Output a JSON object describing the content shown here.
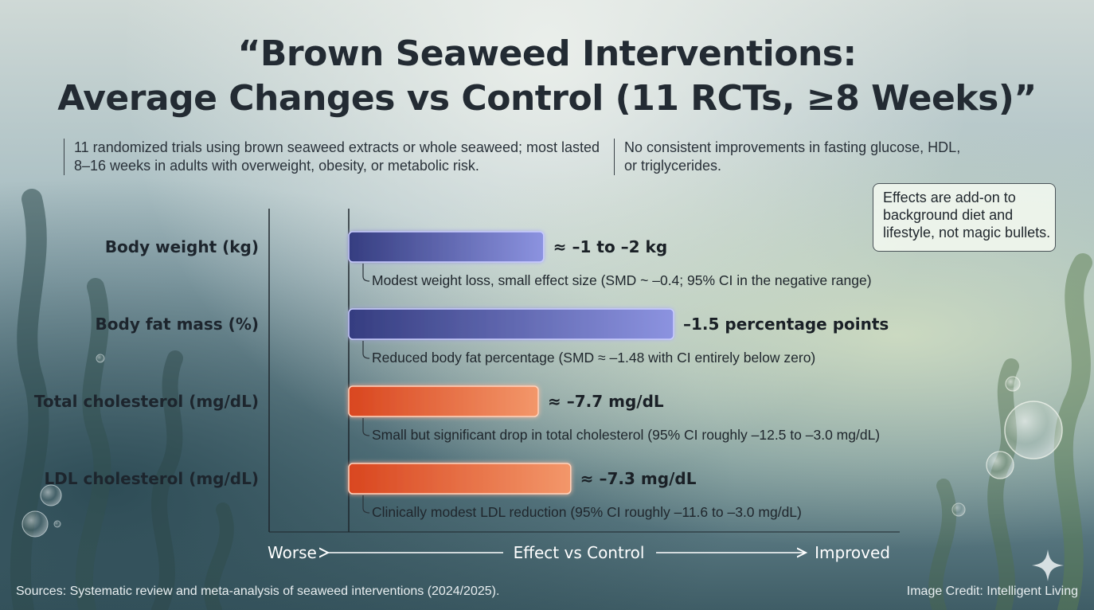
{
  "title": {
    "line1": "“Brown Seaweed Interventions:",
    "line2": "Average Changes vs Control (11 RCTs, ≥8 Weeks)”"
  },
  "description_left": "11 randomized trials using brown seaweed extracts or whole seaweed; most lasted 8–16 weeks in adults with overweight, obesity, or metabolic risk.",
  "description_right": "No consistent improvements in fasting glucose, HDL, or triglycerides.",
  "note_box": "Effects are add-on to background diet and lifestyle, not magic bullets.",
  "colors": {
    "weight_bar": "#5a63b8",
    "cholesterol_bar": "#e2663a",
    "axis": "#ffffff"
  },
  "chart_data": {
    "type": "bar",
    "orientation": "horizontal",
    "rows": [
      {
        "label": "Body weight (kg)",
        "value_label": "≈ –1 to –2 kg",
        "note": "Modest weight loss, small effect size (SMD ~ –0.4; 95% CI in the negative range)",
        "magnitude": 0.36,
        "color": "blue"
      },
      {
        "label": "Body fat mass (%)",
        "value_label": "–1.5 percentage points",
        "note": "Reduced body fat percentage (SMD ≈ –1.48 with CI entirely below zero)",
        "magnitude": 0.6,
        "color": "blue"
      },
      {
        "label": "Total cholesterol (mg/dL)",
        "value_label": "≈ –7.7 mg/dL",
        "note": "Small but significant drop in total cholesterol (95% CI roughly –12.5 to –3.0 mg/dL)",
        "magnitude": 0.35,
        "color": "orange"
      },
      {
        "label": "LDL cholesterol (mg/dL)",
        "value_label": "≈ –7.3 mg/dL",
        "note": "Clinically modest LDL reduction (95% CI roughly –11.6 to –3.0 mg/dL)",
        "magnitude": 0.41,
        "color": "orange"
      }
    ],
    "axis": {
      "left_label": "Worse",
      "center_label": "Effect vs Control",
      "right_label": "Improved"
    }
  },
  "footer": {
    "sources": "Sources: Systematic review and meta-analysis of seaweed interventions (2024/2025).",
    "credit": "Image Credit: Intelligent Living"
  },
  "icons": {
    "sparkle": "sparkle-icon"
  }
}
